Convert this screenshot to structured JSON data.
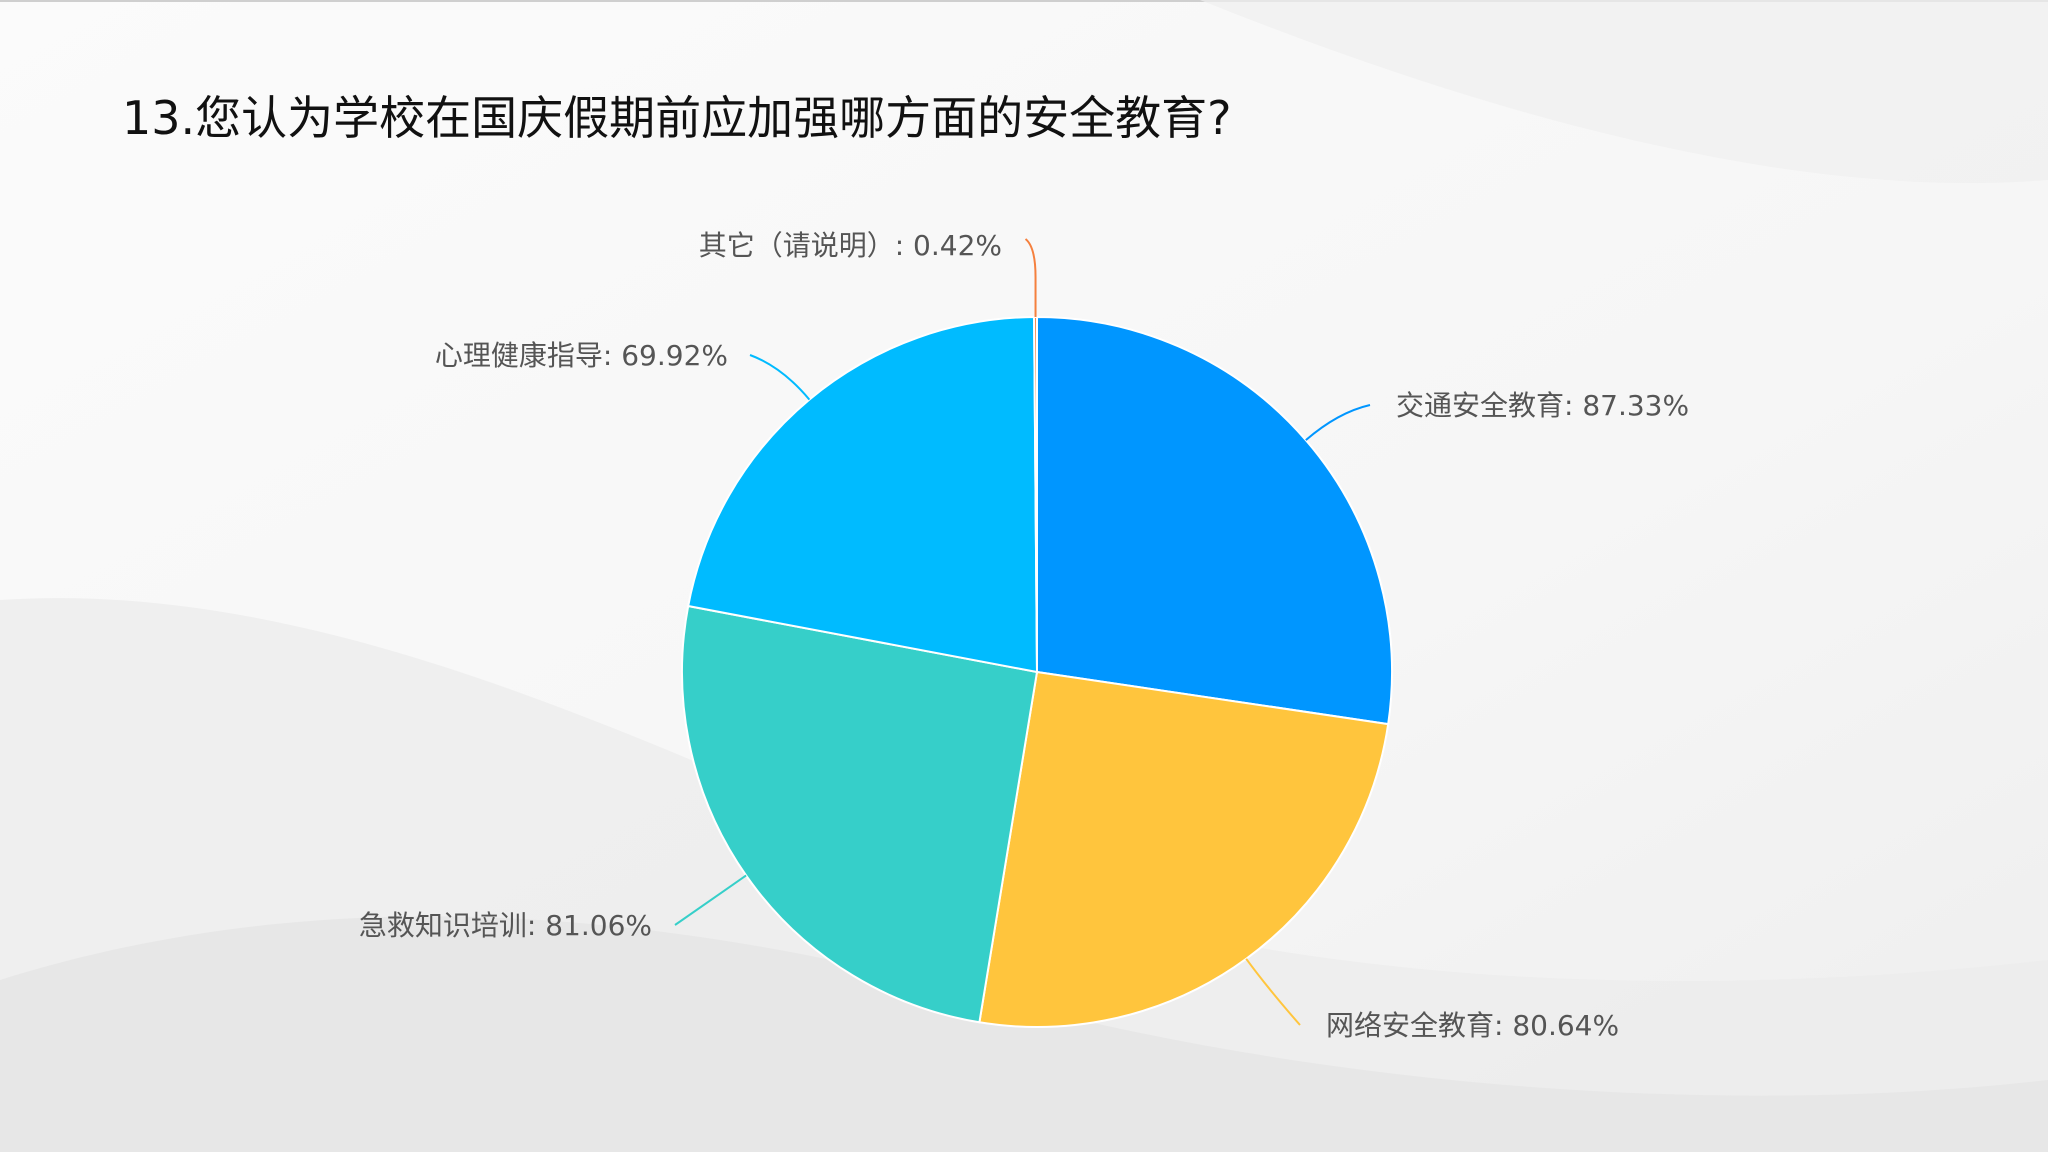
{
  "slide": {
    "title": "13.您认为学校在国庆假期前应加强哪方面的安全教育?"
  },
  "chart_data": {
    "type": "pie",
    "title": "13.您认为学校在国庆假期前应加强哪方面的安全教育?",
    "slices": [
      {
        "name": "交通安全教育",
        "value": 87.33,
        "label": "交通安全教育: 87.33%",
        "color": "#0096FF"
      },
      {
        "name": "网络安全教育",
        "value": 80.64,
        "label": "网络安全教育: 80.64%",
        "color": "#FFC53D"
      },
      {
        "name": "急救知识培训",
        "value": 81.06,
        "label": "急救知识培训: 81.06%",
        "color": "#36CFC9"
      },
      {
        "name": "心理健康指导",
        "value": 69.92,
        "label": "心理健康指导: 69.92%",
        "color": "#00BBFF"
      },
      {
        "name": "其它（请说明）",
        "value": 0.42,
        "label": "其它（请说明）: 0.42%",
        "color": "#F5803E"
      }
    ],
    "legend": "none"
  }
}
